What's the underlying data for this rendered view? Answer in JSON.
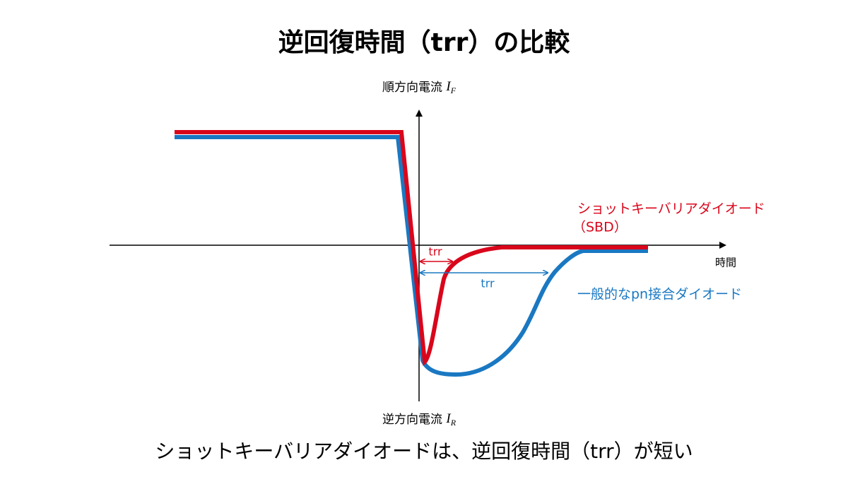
{
  "title": "逆回復時間（trr）の比較",
  "y_axis": {
    "top_label": "順方向電流",
    "top_symbol": "I",
    "top_subscript": "F",
    "bottom_label": "逆方向電流",
    "bottom_symbol": "I",
    "bottom_subscript": "R"
  },
  "x_axis": {
    "label": "時間"
  },
  "curves": [
    {
      "name_line1": "ショットキーバリアダイオード",
      "name_line2": "（SBD）",
      "trr_label": "trr"
    },
    {
      "name_line1": "一般的なpn接合ダイオード",
      "trr_label": "trr"
    }
  ],
  "caption": "ショットキーバリアダイオードは、逆回復時間（trr）が短い"
}
